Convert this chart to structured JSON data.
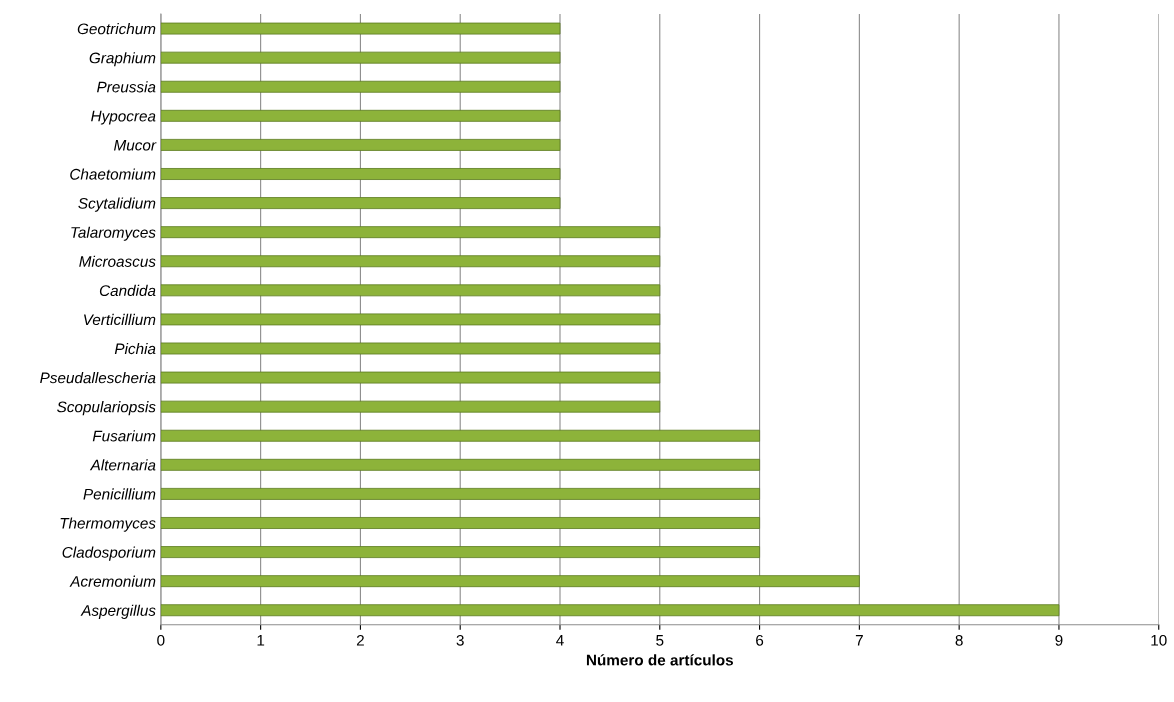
{
  "chart_data": {
    "type": "bar",
    "orientation": "horizontal",
    "xlabel": "Número de artículos",
    "categories": [
      "Geotrichum",
      "Graphium",
      "Preussia",
      "Hypocrea",
      "Mucor",
      "Chaetomium",
      "Scytalidium",
      "Talaromyces",
      "Microascus",
      "Candida",
      "Verticillium",
      "Pichia",
      "Pseudallescheria",
      "Scopulariopsis",
      "Fusarium",
      "Alternaria",
      "Penicillium",
      "Thermomyces",
      "Cladosporium",
      "Acremonium",
      "Aspergillus"
    ],
    "values": [
      4,
      4,
      4,
      4,
      4,
      4,
      4,
      5,
      5,
      5,
      5,
      5,
      5,
      5,
      6,
      6,
      6,
      6,
      6,
      7,
      9
    ],
    "color": "#8db33a",
    "xlim": [
      0,
      10
    ],
    "xticks": [
      0,
      1,
      2,
      3,
      4,
      5,
      6,
      7,
      8,
      9,
      10
    ],
    "grid": "x",
    "legend": false
  }
}
